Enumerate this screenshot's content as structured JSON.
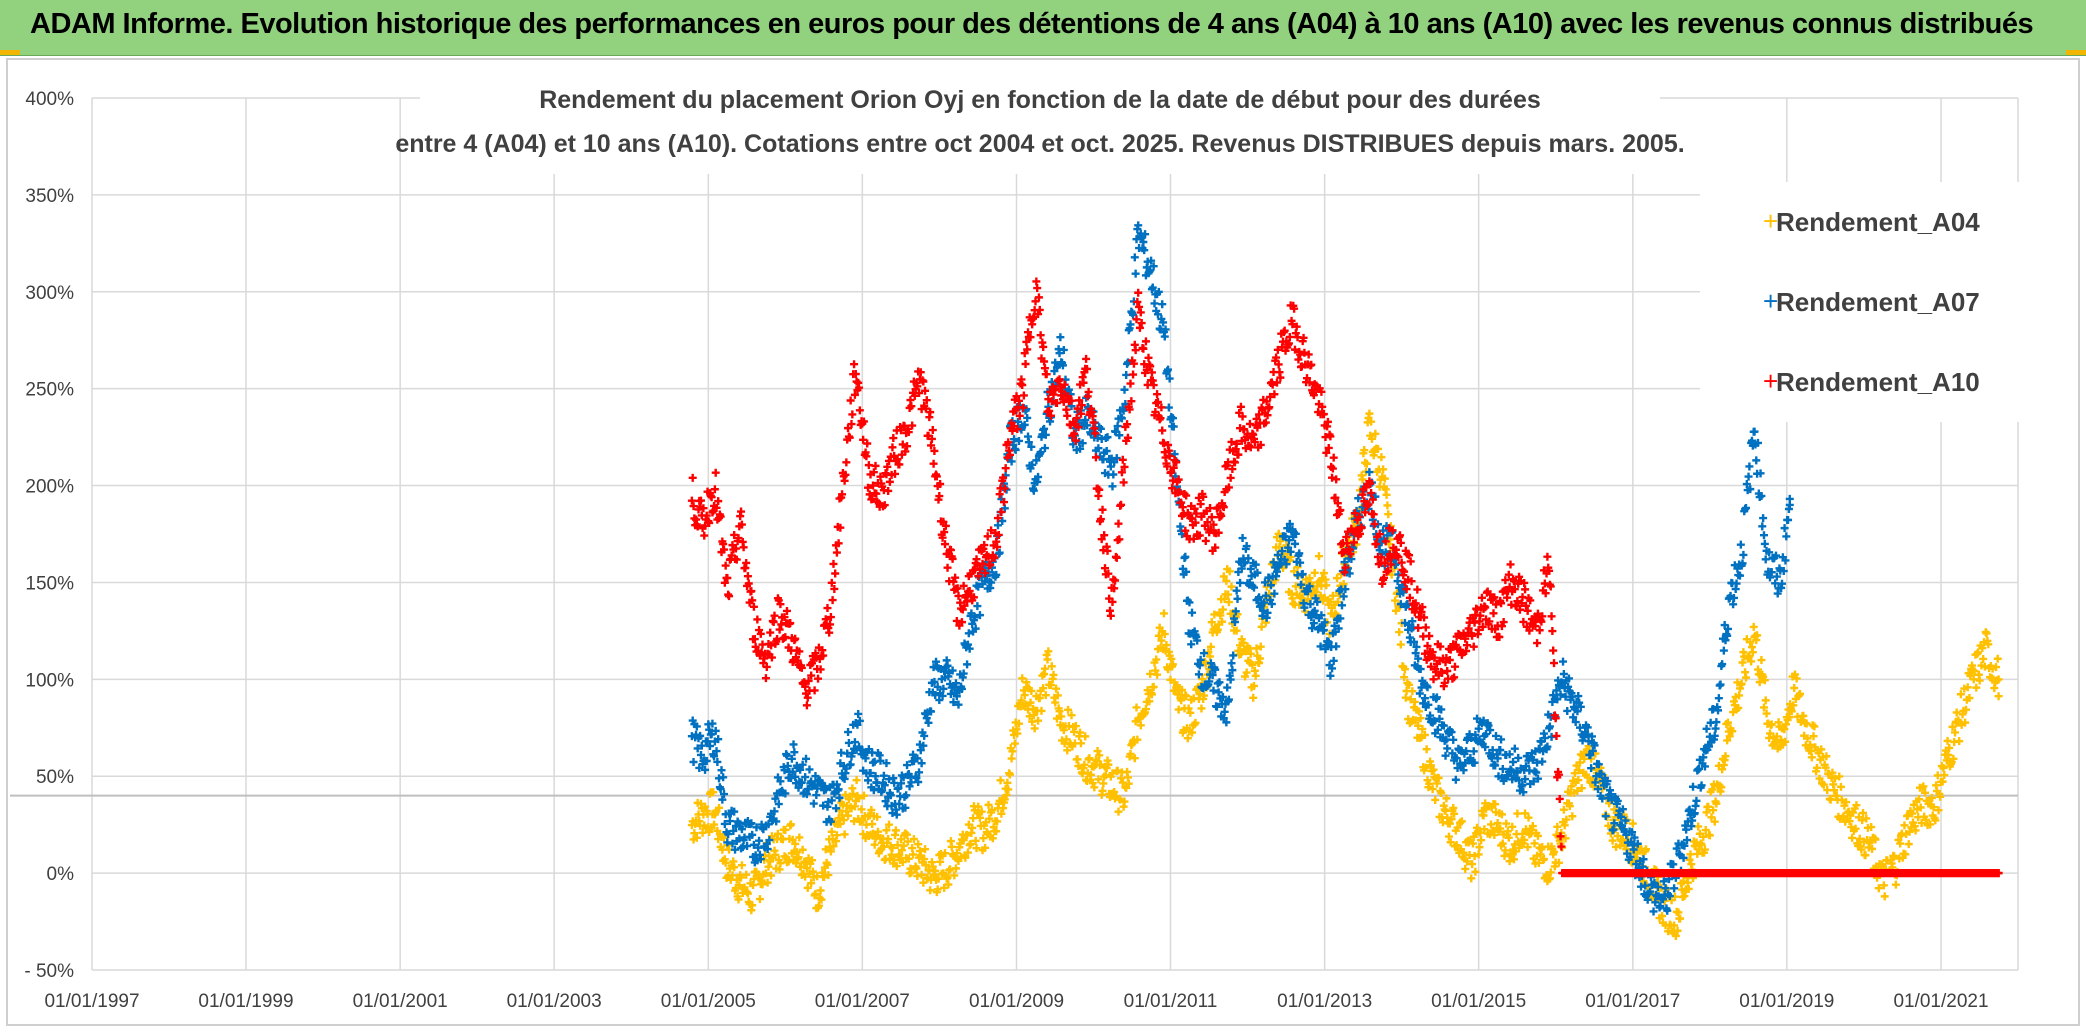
{
  "banner": {
    "title": "ADAM Informe. Evolution historique des performances en euros pour des détentions de 4 ans (A04) à 10 ans (A10) avec les revenus connus distribués"
  },
  "colors": {
    "banner_bg": "#92d27f",
    "A04": "#ffc000",
    "A07": "#0070c0",
    "A10": "#ff0000",
    "grid": "#d9d9d9",
    "reference_line": "#bfbfbf"
  },
  "chart_data": {
    "type": "scatter",
    "title_lines": [
      "Rendement du placement Orion Oyj en fonction de la date de début pour des durées",
      "entre 4 (A04) et 10 ans (A10). Cotations entre oct 2004 et oct. 2025. Revenus DISTRIBUES depuis mars. 2005."
    ],
    "x_ticks": [
      "01/01/1997",
      "01/01/1999",
      "01/01/2001",
      "01/01/2003",
      "01/01/2005",
      "01/01/2007",
      "01/01/2009",
      "01/01/2011",
      "01/01/2013",
      "01/01/2015",
      "01/01/2017",
      "01/01/2019",
      "01/01/2021"
    ],
    "y_ticks": [
      "400%",
      "350%",
      "300%",
      "250%",
      "200%",
      "150%",
      "100%",
      "50%",
      "0%",
      "- 50%"
    ],
    "xlim": [
      "1997-01-01",
      "2022-01-01"
    ],
    "ylim": [
      -50,
      400
    ],
    "reference_line_y": 40,
    "grid": true,
    "legend_position": "right",
    "marker": "+",
    "series": [
      {
        "name": "Rendement_A04",
        "color": "#ffc000",
        "points": [
          [
            "2004-10-15",
            25
          ],
          [
            "2004-12-01",
            30
          ],
          [
            "2005-02-01",
            32
          ],
          [
            "2005-04-01",
            5
          ],
          [
            "2005-06-01",
            -5
          ],
          [
            "2005-08-01",
            -12
          ],
          [
            "2005-10-01",
            5
          ],
          [
            "2005-12-01",
            12
          ],
          [
            "2006-02-01",
            18
          ],
          [
            "2006-04-01",
            8
          ],
          [
            "2006-06-01",
            -10
          ],
          [
            "2006-08-01",
            10
          ],
          [
            "2006-10-01",
            28
          ],
          [
            "2006-12-01",
            38
          ],
          [
            "2007-02-01",
            25
          ],
          [
            "2007-04-01",
            18
          ],
          [
            "2007-06-01",
            15
          ],
          [
            "2007-08-01",
            10
          ],
          [
            "2007-10-01",
            5
          ],
          [
            "2007-12-01",
            -2
          ],
          [
            "2008-02-01",
            2
          ],
          [
            "2008-04-01",
            12
          ],
          [
            "2008-06-01",
            25
          ],
          [
            "2008-08-01",
            22
          ],
          [
            "2008-10-01",
            32
          ],
          [
            "2008-12-01",
            55
          ],
          [
            "2009-02-01",
            95
          ],
          [
            "2009-04-01",
            85
          ],
          [
            "2009-06-01",
            105
          ],
          [
            "2009-08-01",
            78
          ],
          [
            "2009-10-01",
            70
          ],
          [
            "2009-12-01",
            58
          ],
          [
            "2010-02-01",
            52
          ],
          [
            "2010-04-01",
            45
          ],
          [
            "2010-06-01",
            40
          ],
          [
            "2010-08-01",
            80
          ],
          [
            "2010-10-01",
            100
          ],
          [
            "2010-12-01",
            125
          ],
          [
            "2011-02-01",
            88
          ],
          [
            "2011-04-01",
            78
          ],
          [
            "2011-06-01",
            95
          ],
          [
            "2011-08-01",
            130
          ],
          [
            "2011-10-01",
            150
          ],
          [
            "2011-12-01",
            115
          ],
          [
            "2012-02-01",
            100
          ],
          [
            "2012-04-01",
            140
          ],
          [
            "2012-06-01",
            170
          ],
          [
            "2012-08-01",
            150
          ],
          [
            "2012-10-01",
            145
          ],
          [
            "2012-12-01",
            155
          ],
          [
            "2013-02-01",
            130
          ],
          [
            "2013-04-01",
            160
          ],
          [
            "2013-06-01",
            180
          ],
          [
            "2013-08-01",
            230
          ],
          [
            "2013-10-01",
            205
          ],
          [
            "2013-12-01",
            150
          ],
          [
            "2014-02-01",
            90
          ],
          [
            "2014-04-01",
            70
          ],
          [
            "2014-06-01",
            45
          ],
          [
            "2014-08-01",
            30
          ],
          [
            "2014-10-01",
            20
          ],
          [
            "2014-12-01",
            5
          ],
          [
            "2015-02-01",
            30
          ],
          [
            "2015-04-01",
            25
          ],
          [
            "2015-06-01",
            15
          ],
          [
            "2015-08-01",
            25
          ],
          [
            "2015-10-01",
            10
          ],
          [
            "2015-12-01",
            5
          ],
          [
            "2016-02-01",
            20
          ],
          [
            "2016-04-01",
            45
          ],
          [
            "2016-06-01",
            60
          ],
          [
            "2016-08-01",
            45
          ],
          [
            "2016-10-01",
            25
          ],
          [
            "2016-12-01",
            20
          ],
          [
            "2017-02-01",
            10
          ],
          [
            "2017-04-01",
            -5
          ],
          [
            "2017-06-01",
            -18
          ],
          [
            "2017-08-01",
            -22
          ],
          [
            "2017-10-01",
            5
          ],
          [
            "2017-12-01",
            20
          ],
          [
            "2018-02-01",
            40
          ],
          [
            "2018-04-01",
            75
          ],
          [
            "2018-06-01",
            100
          ],
          [
            "2018-08-01",
            125
          ],
          [
            "2018-10-01",
            80
          ],
          [
            "2018-12-01",
            65
          ],
          [
            "2019-02-01",
            95
          ],
          [
            "2019-04-01",
            75
          ],
          [
            "2019-06-01",
            60
          ],
          [
            "2019-08-01",
            45
          ],
          [
            "2019-10-01",
            35
          ],
          [
            "2019-12-01",
            25
          ],
          [
            "2020-02-01",
            15
          ],
          [
            "2020-04-01",
            -5
          ],
          [
            "2020-06-01",
            5
          ],
          [
            "2020-08-01",
            25
          ],
          [
            "2020-10-01",
            35
          ],
          [
            "2020-12-01",
            35
          ],
          [
            "2021-02-01",
            60
          ],
          [
            "2021-04-01",
            80
          ],
          [
            "2021-06-01",
            100
          ],
          [
            "2021-08-01",
            115
          ],
          [
            "2021-10-01",
            100
          ]
        ]
      },
      {
        "name": "Rendement_A07",
        "color": "#0070c0",
        "points": [
          [
            "2004-10-15",
            70
          ],
          [
            "2004-12-01",
            60
          ],
          [
            "2005-02-01",
            72
          ],
          [
            "2005-04-01",
            25
          ],
          [
            "2005-06-01",
            20
          ],
          [
            "2005-08-01",
            15
          ],
          [
            "2005-10-01",
            20
          ],
          [
            "2005-12-01",
            40
          ],
          [
            "2006-02-01",
            60
          ],
          [
            "2006-04-01",
            50
          ],
          [
            "2006-06-01",
            42
          ],
          [
            "2006-08-01",
            35
          ],
          [
            "2006-10-01",
            55
          ],
          [
            "2006-12-01",
            75
          ],
          [
            "2007-02-01",
            55
          ],
          [
            "2007-04-01",
            50
          ],
          [
            "2007-06-01",
            40
          ],
          [
            "2007-08-01",
            45
          ],
          [
            "2007-10-01",
            60
          ],
          [
            "2007-12-01",
            98
          ],
          [
            "2008-02-01",
            100
          ],
          [
            "2008-04-01",
            90
          ],
          [
            "2008-06-01",
            130
          ],
          [
            "2008-08-01",
            150
          ],
          [
            "2008-10-01",
            165
          ],
          [
            "2008-12-01",
            220
          ],
          [
            "2009-02-01",
            240
          ],
          [
            "2009-04-01",
            200
          ],
          [
            "2009-06-01",
            240
          ],
          [
            "2009-08-01",
            270
          ],
          [
            "2009-10-01",
            225
          ],
          [
            "2009-12-01",
            235
          ],
          [
            "2010-02-01",
            220
          ],
          [
            "2010-04-01",
            210
          ],
          [
            "2010-06-01",
            250
          ],
          [
            "2010-08-01",
            330
          ],
          [
            "2010-10-01",
            310
          ],
          [
            "2010-12-01",
            280
          ],
          [
            "2011-02-01",
            200
          ],
          [
            "2011-04-01",
            130
          ],
          [
            "2011-06-01",
            105
          ],
          [
            "2011-08-01",
            95
          ],
          [
            "2011-10-01",
            85
          ],
          [
            "2011-12-01",
            165
          ],
          [
            "2012-02-01",
            150
          ],
          [
            "2012-04-01",
            140
          ],
          [
            "2012-06-01",
            160
          ],
          [
            "2012-08-01",
            175
          ],
          [
            "2012-10-01",
            145
          ],
          [
            "2012-12-01",
            130
          ],
          [
            "2013-02-01",
            110
          ],
          [
            "2013-04-01",
            150
          ],
          [
            "2013-06-01",
            180
          ],
          [
            "2013-08-01",
            200
          ],
          [
            "2013-10-01",
            170
          ],
          [
            "2013-12-01",
            165
          ],
          [
            "2014-02-01",
            130
          ],
          [
            "2014-04-01",
            100
          ],
          [
            "2014-06-01",
            85
          ],
          [
            "2014-08-01",
            70
          ],
          [
            "2014-10-01",
            55
          ],
          [
            "2014-12-01",
            65
          ],
          [
            "2015-02-01",
            75
          ],
          [
            "2015-04-01",
            60
          ],
          [
            "2015-06-01",
            55
          ],
          [
            "2015-08-01",
            52
          ],
          [
            "2015-10-01",
            55
          ],
          [
            "2015-12-01",
            75
          ],
          [
            "2016-02-01",
            100
          ],
          [
            "2016-04-01",
            85
          ],
          [
            "2016-06-01",
            70
          ],
          [
            "2016-08-01",
            45
          ],
          [
            "2016-10-01",
            30
          ],
          [
            "2016-12-01",
            20
          ],
          [
            "2017-02-01",
            5
          ],
          [
            "2017-04-01",
            -10
          ],
          [
            "2017-06-01",
            -15
          ],
          [
            "2017-08-01",
            5
          ],
          [
            "2017-10-01",
            30
          ],
          [
            "2017-12-01",
            60
          ],
          [
            "2018-02-01",
            80
          ],
          [
            "2018-04-01",
            140
          ],
          [
            "2018-06-01",
            165
          ],
          [
            "2018-08-01",
            230
          ],
          [
            "2018-10-01",
            160
          ],
          [
            "2018-12-01",
            150
          ],
          [
            "2019-01-15",
            190
          ]
        ]
      },
      {
        "name": "Rendement_A10",
        "color": "#ff0000",
        "points": [
          [
            "2004-10-15",
            195
          ],
          [
            "2004-12-01",
            180
          ],
          [
            "2005-02-01",
            200
          ],
          [
            "2005-04-01",
            145
          ],
          [
            "2005-06-01",
            180
          ],
          [
            "2005-08-01",
            130
          ],
          [
            "2005-10-01",
            110
          ],
          [
            "2005-12-01",
            135
          ],
          [
            "2006-02-01",
            120
          ],
          [
            "2006-04-01",
            95
          ],
          [
            "2006-06-01",
            105
          ],
          [
            "2006-08-01",
            135
          ],
          [
            "2006-10-01",
            200
          ],
          [
            "2006-12-01",
            260
          ],
          [
            "2007-02-01",
            205
          ],
          [
            "2007-04-01",
            195
          ],
          [
            "2007-06-01",
            215
          ],
          [
            "2007-08-01",
            230
          ],
          [
            "2007-10-01",
            255
          ],
          [
            "2007-12-01",
            220
          ],
          [
            "2008-02-01",
            170
          ],
          [
            "2008-04-01",
            135
          ],
          [
            "2008-06-01",
            150
          ],
          [
            "2008-08-01",
            160
          ],
          [
            "2008-10-01",
            175
          ],
          [
            "2008-12-01",
            225
          ],
          [
            "2009-02-01",
            250
          ],
          [
            "2009-04-01",
            305
          ],
          [
            "2009-06-01",
            240
          ],
          [
            "2009-08-01",
            255
          ],
          [
            "2009-10-01",
            230
          ],
          [
            "2009-12-01",
            260
          ],
          [
            "2010-02-01",
            190
          ],
          [
            "2010-04-01",
            135
          ],
          [
            "2010-06-01",
            220
          ],
          [
            "2010-08-01",
            290
          ],
          [
            "2010-10-01",
            250
          ],
          [
            "2010-12-01",
            225
          ],
          [
            "2011-02-01",
            200
          ],
          [
            "2011-04-01",
            180
          ],
          [
            "2011-06-01",
            185
          ],
          [
            "2011-08-01",
            175
          ],
          [
            "2011-10-01",
            205
          ],
          [
            "2011-12-01",
            230
          ],
          [
            "2012-02-01",
            220
          ],
          [
            "2012-04-01",
            240
          ],
          [
            "2012-06-01",
            265
          ],
          [
            "2012-08-01",
            285
          ],
          [
            "2012-10-01",
            265
          ],
          [
            "2012-12-01",
            245
          ],
          [
            "2013-02-01",
            215
          ],
          [
            "2013-04-01",
            165
          ],
          [
            "2013-06-01",
            180
          ],
          [
            "2013-08-01",
            195
          ],
          [
            "2013-10-01",
            160
          ],
          [
            "2013-12-01",
            175
          ],
          [
            "2014-02-01",
            155
          ],
          [
            "2014-04-01",
            130
          ],
          [
            "2014-06-01",
            110
          ],
          [
            "2014-08-01",
            105
          ],
          [
            "2014-10-01",
            115
          ],
          [
            "2014-12-01",
            125
          ],
          [
            "2015-02-01",
            140
          ],
          [
            "2015-04-01",
            130
          ],
          [
            "2015-06-01",
            150
          ],
          [
            "2015-08-01",
            140
          ],
          [
            "2015-10-01",
            125
          ],
          [
            "2015-12-01",
            160
          ],
          [
            "2016-02-01",
            0
          ],
          [
            "2016-06-01",
            0
          ],
          [
            "2016-10-01",
            0
          ],
          [
            "2017-02-01",
            0
          ],
          [
            "2017-06-01",
            0
          ],
          [
            "2017-10-01",
            0
          ],
          [
            "2018-02-01",
            0
          ],
          [
            "2018-06-01",
            0
          ],
          [
            "2018-10-01",
            0
          ],
          [
            "2019-02-01",
            0
          ],
          [
            "2019-06-01",
            0
          ],
          [
            "2019-10-01",
            0
          ],
          [
            "2020-02-01",
            0
          ],
          [
            "2020-06-01",
            0
          ],
          [
            "2020-10-01",
            0
          ],
          [
            "2021-02-01",
            0
          ],
          [
            "2021-06-01",
            0
          ],
          [
            "2021-10-01",
            0
          ]
        ]
      }
    ]
  }
}
